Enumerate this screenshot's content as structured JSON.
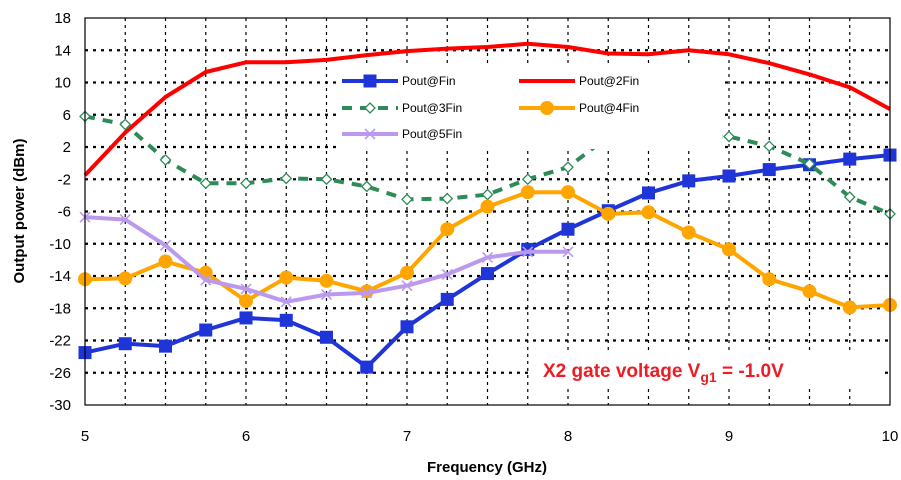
{
  "chart_data": {
    "type": "line",
    "xlabel": "Frequency (GHz)",
    "ylabel": "Output power (dBm)",
    "xlim": [
      5,
      10
    ],
    "ylim": [
      -30,
      18
    ],
    "xticks": [
      5,
      6,
      7,
      8,
      9,
      10
    ],
    "yticks": [
      -30,
      -26,
      -22,
      -18,
      -14,
      -10,
      -6,
      -2,
      2,
      6,
      10,
      14,
      18
    ],
    "grid": "dotted",
    "legend_position": "top-center",
    "annotation": {
      "prefix": "X2 gate voltage V",
      "subscript": "g1",
      "suffix": " = -1.0V",
      "color": "#ee1c24"
    },
    "series": [
      {
        "name": "Pout@Fin",
        "color": "#1f35d8",
        "style": "solid",
        "marker": "square",
        "x": [
          5,
          5.25,
          5.5,
          5.75,
          6,
          6.25,
          6.5,
          6.75,
          7,
          7.25,
          7.5,
          7.75,
          8,
          8.25,
          8.5,
          8.75,
          9,
          9.25,
          9.5,
          9.75,
          10
        ],
        "y": [
          -23.5,
          -22.4,
          -22.7,
          -20.7,
          -19.2,
          -19.5,
          -21.6,
          -25.3,
          -20.3,
          -16.9,
          -13.7,
          -10.7,
          -8.2,
          -5.9,
          -3.7,
          -2.2,
          -1.6,
          -0.8,
          -0.2,
          0.5,
          1.0
        ]
      },
      {
        "name": "Pout@2Fin",
        "color": "#ff0000",
        "style": "solid",
        "marker": "none",
        "x": [
          5,
          5.25,
          5.5,
          5.75,
          6,
          6.25,
          6.5,
          6.75,
          7,
          7.25,
          7.5,
          7.75,
          8,
          8.25,
          8.5,
          8.75,
          9,
          9.25,
          9.5,
          9.75,
          10
        ],
        "y": [
          -1.5,
          3.8,
          8.2,
          11.3,
          12.5,
          12.5,
          12.8,
          13.4,
          13.9,
          14.2,
          14.4,
          14.8,
          14.4,
          13.6,
          13.5,
          14.0,
          13.5,
          12.4,
          11.0,
          9.4,
          6.7
        ]
      },
      {
        "name": "Pout@3Fin",
        "color": "#2e8b57",
        "style": "dashed",
        "marker": "diamond-open",
        "x": [
          5,
          5.25,
          5.5,
          5.75,
          6,
          6.25,
          6.5,
          6.75,
          7,
          7.25,
          7.5,
          7.75,
          8,
          8.25,
          8.5,
          8.75,
          9,
          9.25,
          9.5,
          9.75,
          10
        ],
        "y": [
          5.8,
          4.8,
          0.4,
          -2.5,
          -2.5,
          -1.9,
          -2.0,
          -2.9,
          -4.5,
          -4.4,
          -3.9,
          -2.0,
          -0.5,
          3.3,
          3.6,
          3.4,
          3.3,
          2.1,
          -0.1,
          -4.2,
          -6.3
        ]
      },
      {
        "name": "Pout@4Fin",
        "color": "#ffa500",
        "style": "solid",
        "marker": "circle",
        "x": [
          5,
          5.25,
          5.5,
          5.75,
          6,
          6.25,
          6.5,
          6.75,
          7,
          7.25,
          7.5,
          7.75,
          8,
          8.25,
          8.5,
          8.75,
          9,
          9.25,
          9.5,
          9.75,
          10
        ],
        "y": [
          -14.4,
          -14.3,
          -12.2,
          -13.6,
          -17.1,
          -14.2,
          -14.6,
          -15.9,
          -13.6,
          -8.2,
          -5.4,
          -3.6,
          -3.6,
          -6.3,
          -6.1,
          -8.6,
          -10.7,
          -14.4,
          -15.9,
          -17.9,
          -17.6
        ]
      },
      {
        "name": "Pout@5Fin",
        "color": "#bb99ee",
        "style": "solid",
        "marker": "x",
        "x": [
          5,
          5.25,
          5.5,
          5.75,
          6,
          6.25,
          6.5,
          6.75,
          7,
          7.25,
          7.5,
          7.75,
          8
        ],
        "y": [
          -6.7,
          -7.0,
          -10.2,
          -14.5,
          -15.6,
          -17.2,
          -16.3,
          -16.1,
          -15.2,
          -13.8,
          -11.7,
          -11.0,
          -11.0
        ]
      }
    ]
  }
}
